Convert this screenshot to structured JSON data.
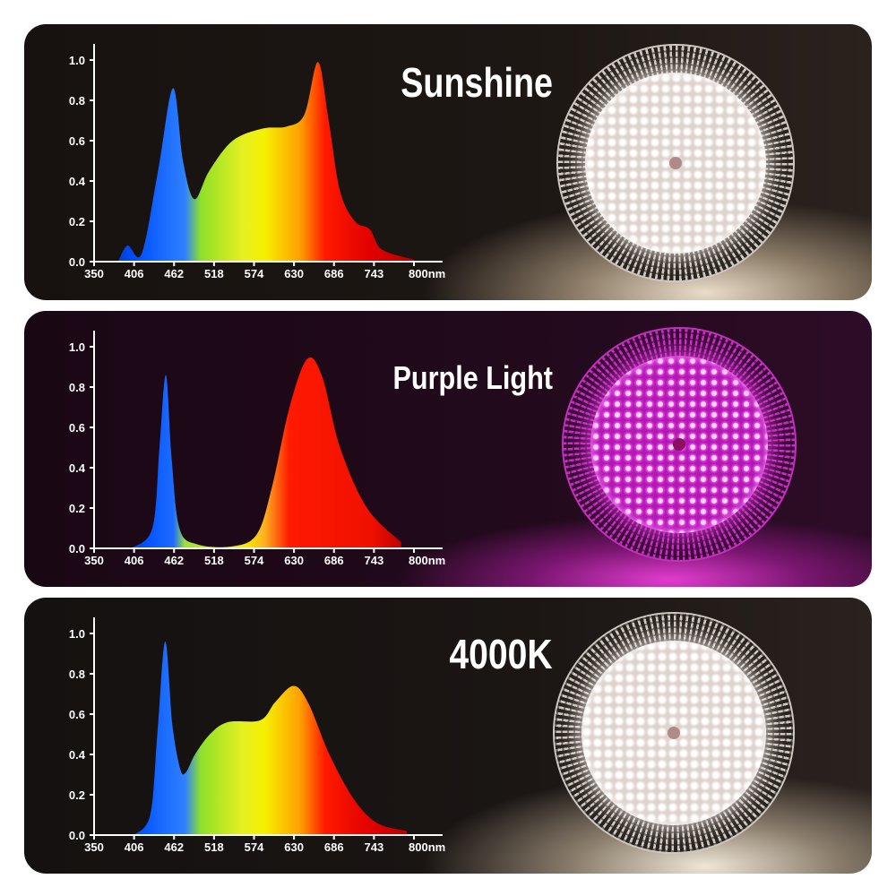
{
  "panels": [
    {
      "title": "Sunshine",
      "lamp_color": "#f4ede6"
    },
    {
      "title": "Purple Light",
      "lamp_color": "#e23ce0"
    },
    {
      "title": "4000K",
      "lamp_color": "#f6eeea"
    }
  ],
  "axis": {
    "x_ticks": [
      "350",
      "406",
      "462",
      "518",
      "574",
      "630",
      "686",
      "743",
      "800nm"
    ],
    "y_ticks": [
      "0.0",
      "0.2",
      "0.4",
      "0.6",
      "0.8",
      "1.0"
    ]
  },
  "chart_data": [
    {
      "type": "area",
      "title": "Sunshine",
      "xlabel": "nm",
      "ylabel": "",
      "xlim": [
        350,
        800
      ],
      "ylim": [
        0,
        1.0
      ],
      "x_ticks": [
        350,
        406,
        462,
        518,
        574,
        630,
        686,
        743,
        800
      ],
      "y_ticks": [
        0.0,
        0.2,
        0.4,
        0.6,
        0.8,
        1.0
      ],
      "grid": false,
      "fill": "spectrum gradient",
      "x": [
        384,
        397,
        417,
        440,
        461,
        475,
        491,
        512,
        545,
        587,
        621,
        646,
        665,
        680,
        696,
        717,
        738,
        755,
        800
      ],
      "y": [
        0.0,
        0.08,
        0.04,
        0.45,
        0.86,
        0.5,
        0.31,
        0.45,
        0.6,
        0.66,
        0.67,
        0.73,
        0.99,
        0.7,
        0.35,
        0.2,
        0.16,
        0.06,
        0.01
      ]
    },
    {
      "type": "area",
      "title": "Purple Light",
      "xlabel": "nm",
      "ylabel": "",
      "xlim": [
        350,
        800
      ],
      "ylim": [
        0,
        1.0
      ],
      "x_ticks": [
        350,
        406,
        462,
        518,
        574,
        630,
        686,
        743,
        800
      ],
      "y_ticks": [
        0.0,
        0.2,
        0.4,
        0.6,
        0.8,
        1.0
      ],
      "grid": false,
      "fill": "spectrum gradient",
      "x": [
        402,
        432,
        442,
        451,
        459,
        470,
        495,
        545,
        579,
        600,
        625,
        650,
        671,
        696,
        734,
        782
      ],
      "y": [
        0.0,
        0.1,
        0.5,
        0.86,
        0.45,
        0.1,
        0.02,
        0.01,
        0.07,
        0.3,
        0.7,
        0.94,
        0.85,
        0.5,
        0.2,
        0.03
      ]
    },
    {
      "type": "area",
      "title": "4000K",
      "xlabel": "nm",
      "ylabel": "",
      "xlim": [
        350,
        800
      ],
      "ylim": [
        0,
        1.0
      ],
      "x_ticks": [
        350,
        406,
        462,
        518,
        574,
        630,
        686,
        743,
        800
      ],
      "y_ticks": [
        0.0,
        0.2,
        0.4,
        0.6,
        0.8,
        1.0
      ],
      "grid": false,
      "fill": "spectrum gradient",
      "x": [
        406,
        429,
        439,
        450,
        460,
        471,
        479,
        492,
        513,
        538,
        584,
        605,
        631,
        652,
        681,
        715,
        748,
        790
      ],
      "y": [
        0.0,
        0.1,
        0.5,
        0.96,
        0.55,
        0.33,
        0.31,
        0.4,
        0.5,
        0.56,
        0.57,
        0.66,
        0.74,
        0.65,
        0.4,
        0.18,
        0.06,
        0.02
      ]
    }
  ],
  "colors": {
    "blue": "#0050ff",
    "green": "#8ee02a",
    "yellow": "#f5f000",
    "orange": "#ffa000",
    "red": "#ff1a00",
    "dark_red": "#b80000"
  }
}
